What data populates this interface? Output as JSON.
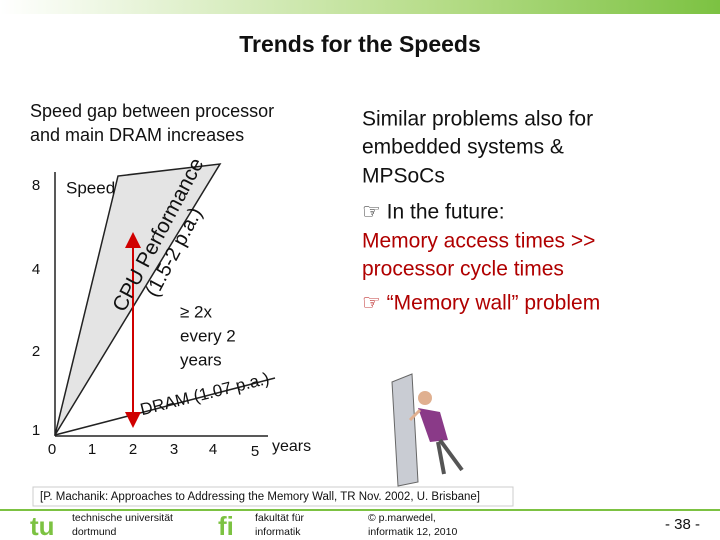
{
  "title": "Trends for the Speeds",
  "left_text": [
    "Speed gap between processor",
    "and main DRAM increases"
  ],
  "diagram": {
    "y_labels": [
      "8",
      "4",
      "2",
      "1"
    ],
    "x_labels": [
      "0",
      "1",
      "2",
      "3",
      "4",
      "5"
    ],
    "x_unit": "years",
    "speed_label": "Speed",
    "cpu_label": [
      "CPU Performance",
      "(1.5-2 p.a.)"
    ],
    "dram_label": "DRAM (1.07 p.a.)",
    "gap_label": [
      "≥ 2x",
      "every 2",
      "years"
    ]
  },
  "right_text": [
    {
      "text": "Similar problems also for",
      "color": "#111111"
    },
    {
      "text": "embedded systems &",
      "color": "#111111"
    },
    {
      "text": "MPSoCs",
      "color": "#111111"
    },
    {
      "text": "☞ In the future:",
      "color": "#111111"
    },
    {
      "text": "Memory access times >>",
      "color": "#b00000"
    },
    {
      "text": "processor cycle times",
      "color": "#b00000"
    },
    {
      "text": "☞ “Memory wall” problem",
      "color": "#b00000"
    }
  ],
  "citation": "[P. Machanik: Approaches to Addressing the Memory Wall, TR Nov. 2002, U. Brisbane]",
  "footer": {
    "university": [
      "technische universität",
      "dortmund"
    ],
    "faculty": [
      "fakultät für",
      "informatik"
    ],
    "author": [
      "© p.marwedel,",
      "informatik 12,  2010"
    ],
    "page": "-  38 -"
  }
}
